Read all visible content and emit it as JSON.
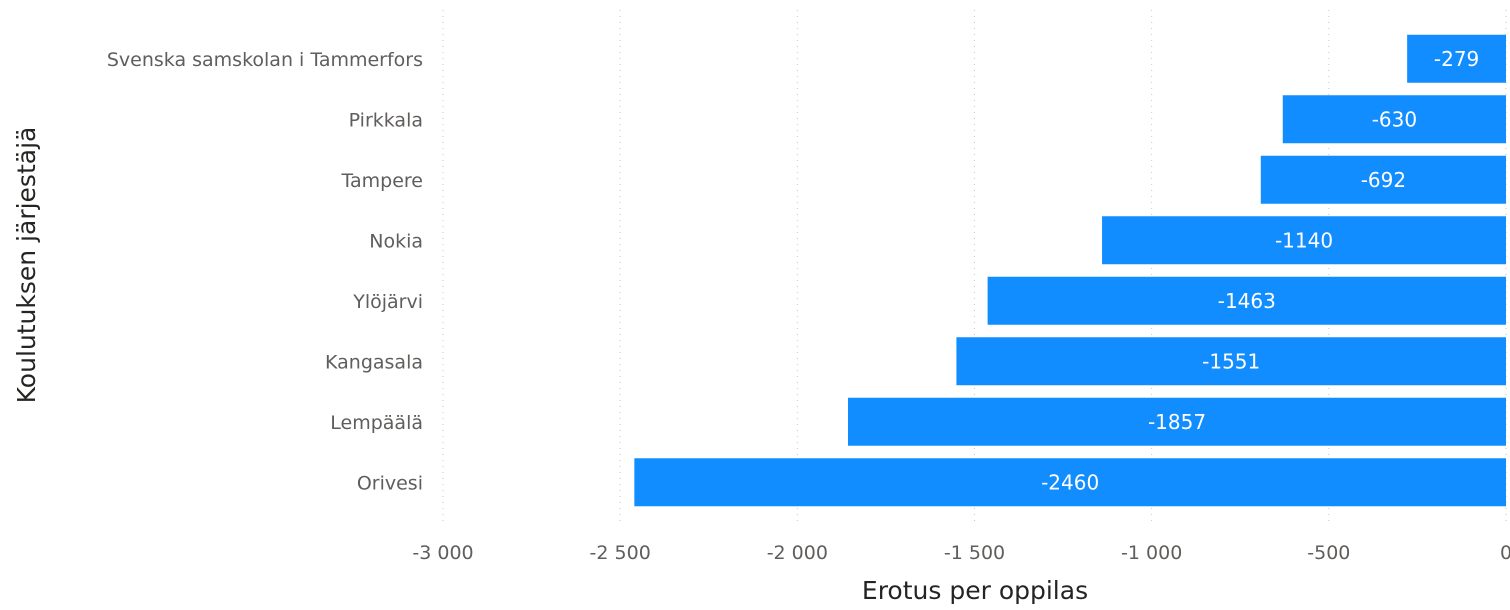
{
  "chart_data": {
    "type": "bar",
    "orientation": "horizontal",
    "categories": [
      "Svenska samskolan i Tammerfors",
      "Pirkkala",
      "Tampere",
      "Nokia",
      "Ylöjärvi",
      "Kangasala",
      "Lempäälä",
      "Orivesi"
    ],
    "values": [
      -279,
      -630,
      -692,
      -1140,
      -1463,
      -1551,
      -1857,
      -2460
    ],
    "value_labels": [
      "-279",
      "-630",
      "-692",
      "-1140",
      "-1463",
      "-1551",
      "-1857",
      "-2460"
    ],
    "xlabel": "Erotus per oppilas",
    "ylabel": "Koulutuksen järjestäjä",
    "xlim": [
      -3000,
      0
    ],
    "xticks": [
      -3000,
      -2500,
      -2000,
      -1500,
      -1000,
      -500,
      0
    ],
    "xtick_labels": [
      "-3 000",
      "-2 500",
      "-2 000",
      "-1 500",
      "-1 000",
      "-500",
      "0"
    ],
    "grid": true,
    "legend": "none",
    "bar_color": "#118dff"
  }
}
